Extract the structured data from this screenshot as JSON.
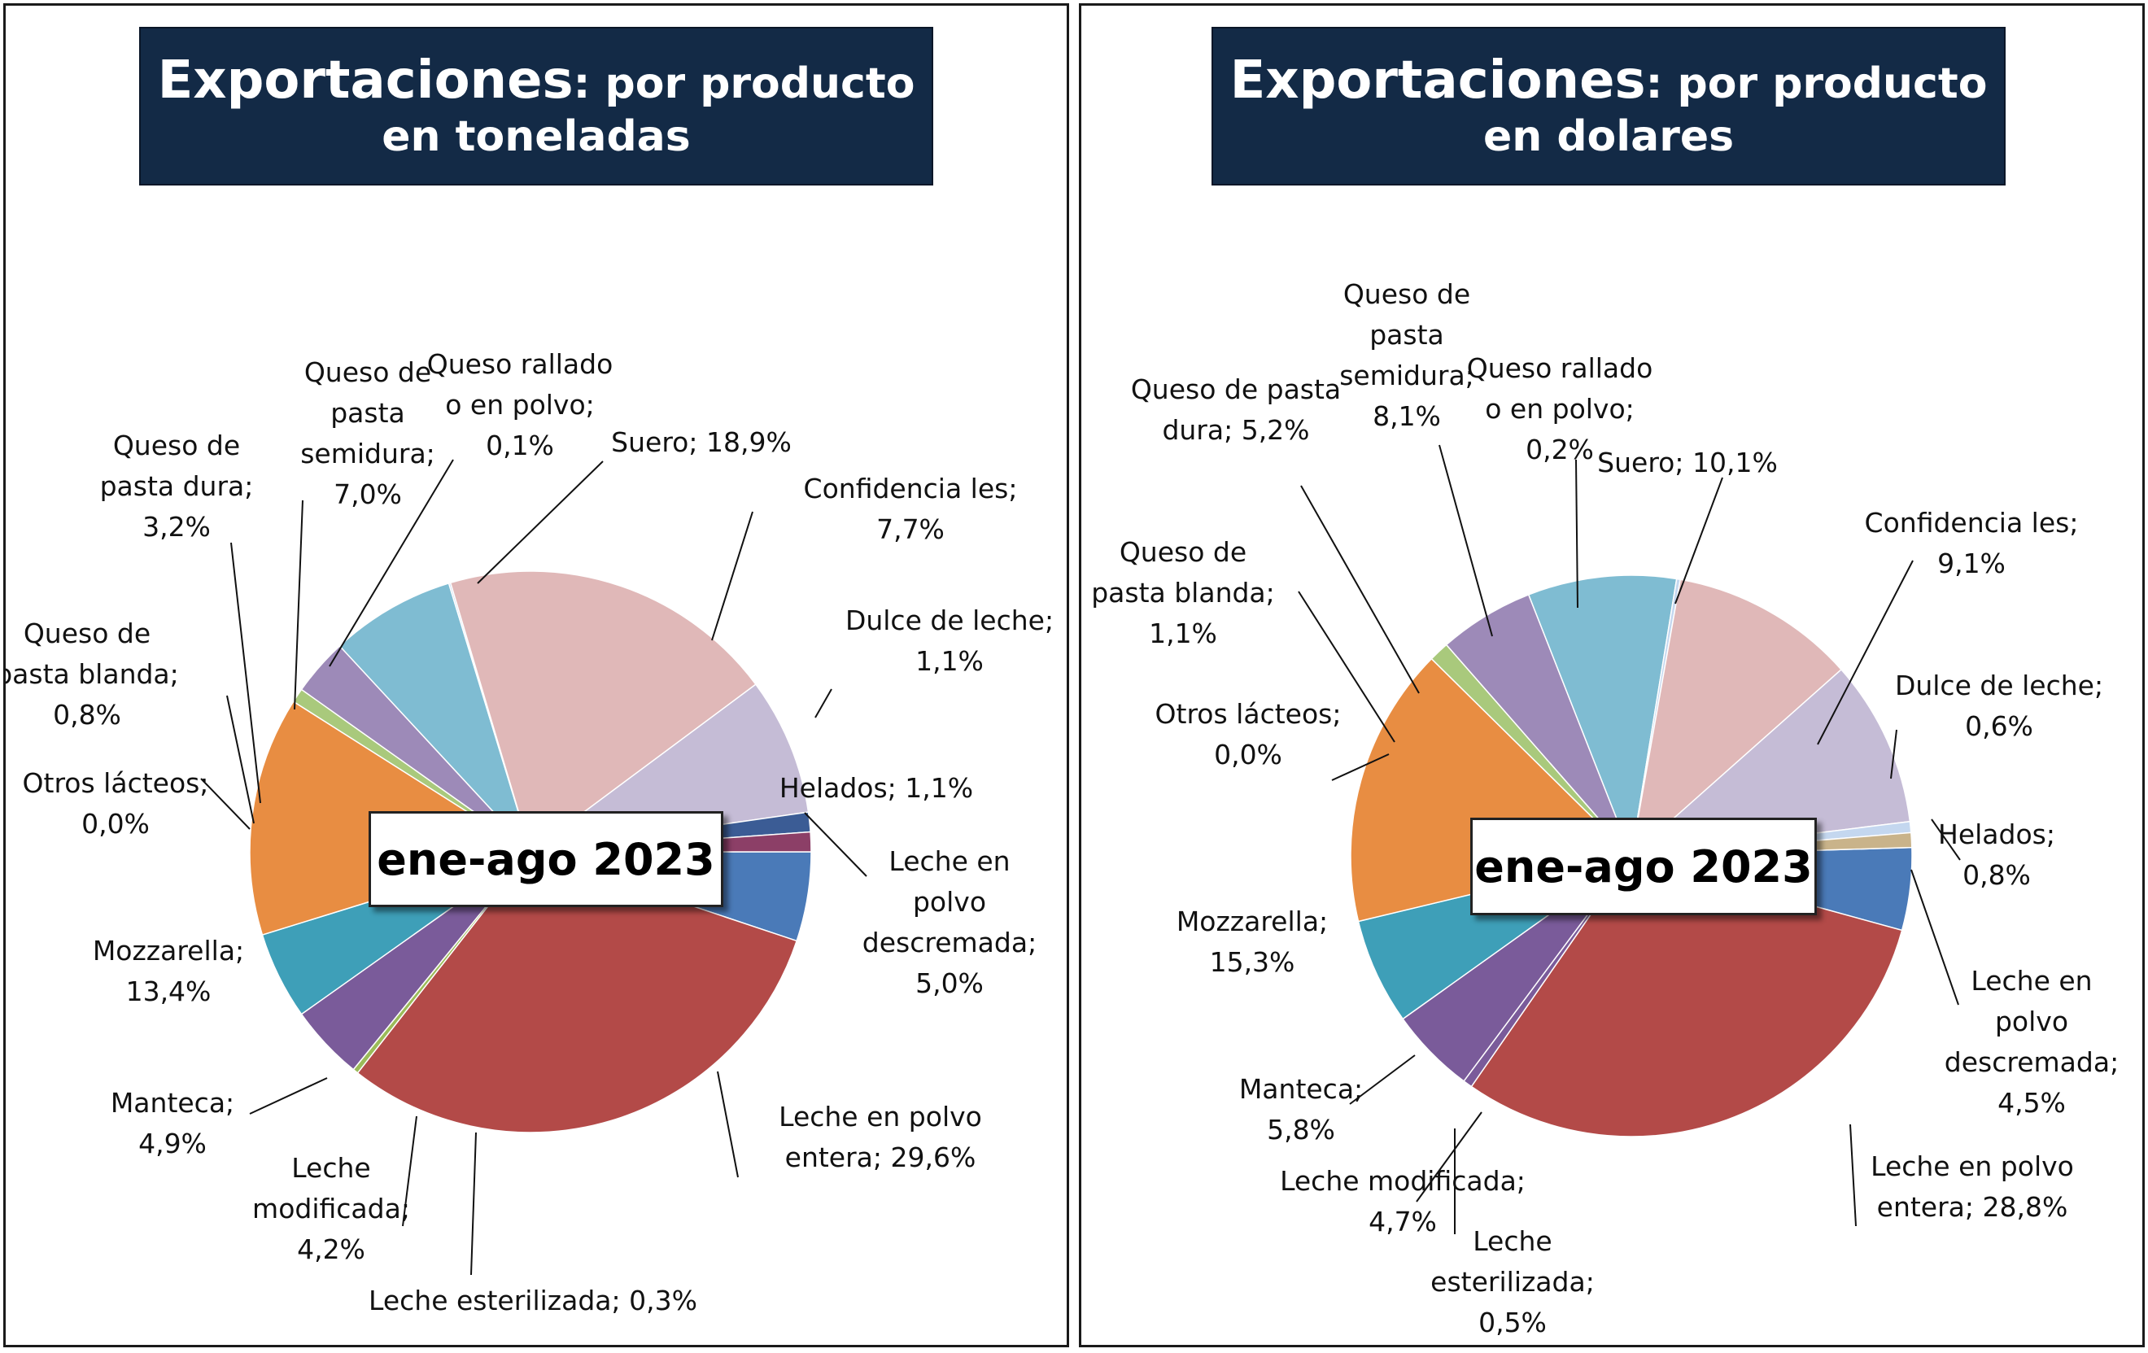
{
  "charts": [
    {
      "title_main": "Exportaciones",
      "title_rest": ": por producto en toneladas",
      "period": "ene-ago 2023"
    },
    {
      "title_main": "Exportaciones",
      "title_rest": ": por producto en dolares",
      "period": "ene-ago 2023"
    }
  ],
  "chart_data": [
    {
      "type": "pie",
      "title": "Exportaciones: por producto en toneladas",
      "annotation": "ene-ago 2023",
      "slices": [
        {
          "name": "Leche en polvo descremada",
          "value": 5.0,
          "color": "#4a7ab8",
          "label": [
            "Leche en",
            "polvo",
            "descremada;",
            "5,0%"
          ]
        },
        {
          "name": "Leche en polvo entera",
          "value": 29.6,
          "color": "#b34a48",
          "label": [
            "Leche en polvo",
            "entera; 29,6%"
          ]
        },
        {
          "name": "Leche esterilizada",
          "value": 0.3,
          "color": "#9bbb59",
          "label": [
            "Leche esterilizada; 0,3%"
          ]
        },
        {
          "name": "Leche modificada",
          "value": 4.2,
          "color": "#7a5b9a",
          "label": [
            "Leche",
            "modificada;",
            "4,2%"
          ]
        },
        {
          "name": "Manteca",
          "value": 4.9,
          "color": "#3e9fb8",
          "label": [
            "Manteca;",
            "4,9%"
          ]
        },
        {
          "name": "Mozzarella",
          "value": 13.4,
          "color": "#e88d42",
          "label": [
            "Mozzarella;",
            "13,4%"
          ]
        },
        {
          "name": "Otros lácteos",
          "value": 0.0,
          "color": "#1f3864",
          "label": [
            "Otros lácteos;",
            "0,0%"
          ]
        },
        {
          "name": "Queso de pasta blanda",
          "value": 0.8,
          "color": "#a9c97c",
          "label": [
            "Queso de",
            "pasta blanda;",
            "0,8%"
          ]
        },
        {
          "name": "Queso de pasta dura",
          "value": 3.2,
          "color": "#9d8ab8",
          "label": [
            "Queso de",
            "pasta dura;",
            "3,2%"
          ]
        },
        {
          "name": "Queso de pasta semidura",
          "value": 7.0,
          "color": "#7fbcd2",
          "label": [
            "Queso de",
            "pasta",
            "semidura;",
            "7,0%"
          ]
        },
        {
          "name": "Queso rallado o en polvo",
          "value": 0.1,
          "color": "#c4d7ef",
          "label": [
            "Queso rallado",
            "o en polvo;",
            "0,1%"
          ]
        },
        {
          "name": "Suero",
          "value": 18.9,
          "color": "#e0b8b8",
          "label": [
            "Suero; 18,9%"
          ]
        },
        {
          "name": "Confidencia les",
          "value": 7.7,
          "color": "#c5bcd6",
          "label": [
            "Confidencia les;",
            "7,7%"
          ]
        },
        {
          "name": "Dulce de leche",
          "value": 1.1,
          "color": "#3b5c95",
          "label": [
            "Dulce de leche;",
            "1,1%"
          ]
        },
        {
          "name": "Helados",
          "value": 1.1,
          "color": "#8c3f67",
          "label": [
            "Helados; 1,1%"
          ]
        }
      ]
    },
    {
      "type": "pie",
      "title": "Exportaciones: por producto en dolares",
      "annotation": "ene-ago 2023",
      "slices": [
        {
          "name": "Leche en polvo descremada",
          "value": 4.5,
          "color": "#4a7ab8",
          "label": [
            "Leche en",
            "polvo",
            "descremada;",
            "4,5%"
          ]
        },
        {
          "name": "Leche en polvo entera",
          "value": 28.8,
          "color": "#b34a48",
          "label": [
            "Leche en polvo",
            "entera; 28,8%"
          ]
        },
        {
          "name": "Leche esterilizada",
          "value": 0.5,
          "color": "#7a5b9a",
          "label": [
            "Leche",
            "esterilizada;",
            "0,5%"
          ]
        },
        {
          "name": "Leche modificada",
          "value": 4.7,
          "color": "#7a5b9a",
          "label": [
            "Leche modificada;",
            "4,7%"
          ]
        },
        {
          "name": "Manteca",
          "value": 5.8,
          "color": "#3e9fb8",
          "label": [
            "Manteca;",
            "5,8%"
          ]
        },
        {
          "name": "Mozzarella",
          "value": 15.3,
          "color": "#e88d42",
          "label": [
            "Mozzarella;",
            "15,3%"
          ]
        },
        {
          "name": "Otros lácteos",
          "value": 0.0,
          "color": "#1f3864",
          "label": [
            "Otros lácteos;",
            "0,0%"
          ]
        },
        {
          "name": "Queso de pasta blanda",
          "value": 1.1,
          "color": "#a9c97c",
          "label": [
            "Queso de",
            "pasta blanda;",
            "1,1%"
          ]
        },
        {
          "name": "Queso de pasta dura",
          "value": 5.2,
          "color": "#9d8ab8",
          "label": [
            "Queso de pasta",
            "dura; 5,2%"
          ]
        },
        {
          "name": "Queso de pasta semidura",
          "value": 8.1,
          "color": "#7fbcd2",
          "label": [
            "Queso de",
            "pasta",
            "semidura;",
            "8,1%"
          ]
        },
        {
          "name": "Queso rallado o en polvo",
          "value": 0.2,
          "color": "#c4d7ef",
          "label": [
            "Queso rallado",
            "o en polvo;",
            "0,2%"
          ]
        },
        {
          "name": "Suero",
          "value": 10.1,
          "color": "#e0b8b8",
          "label": [
            "Suero; 10,1%"
          ]
        },
        {
          "name": "Confidencia les",
          "value": 9.1,
          "color": "#c5bcd6",
          "label": [
            "Confidencia les;",
            "9,1%"
          ]
        },
        {
          "name": "Dulce de leche",
          "value": 0.6,
          "color": "#c4d7ef",
          "label": [
            "Dulce de leche;",
            "0,6%"
          ]
        },
        {
          "name": "Helados",
          "value": 0.8,
          "color": "#c9b38a",
          "label": [
            "Helados;",
            "0,8%"
          ]
        }
      ]
    }
  ]
}
